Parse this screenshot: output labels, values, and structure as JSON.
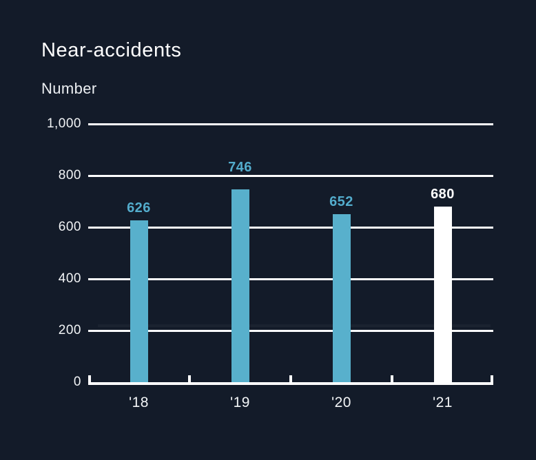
{
  "chart_data": {
    "type": "bar",
    "title": "Near-accidents",
    "ylabel": "Number",
    "xlabel": "",
    "categories": [
      "'18",
      "'19",
      "'20",
      "'21"
    ],
    "values": [
      626,
      746,
      652,
      680
    ],
    "ylim": [
      0,
      1000
    ],
    "yticks": [
      {
        "value": 0,
        "label": "0"
      },
      {
        "value": 200,
        "label": "200"
      },
      {
        "value": 400,
        "label": "400"
      },
      {
        "value": 600,
        "label": "600"
      },
      {
        "value": 800,
        "label": "800"
      },
      {
        "value": 1000,
        "label": "1,000"
      }
    ],
    "grid": true,
    "legend": false,
    "bar_colors": [
      "#58B0CC",
      "#58B0CC",
      "#58B0CC",
      "#FFFFFF"
    ],
    "value_label_colors": [
      "#53ACCC",
      "#53ACCC",
      "#53ACCC",
      "#FFFFFF"
    ],
    "reference_line": {
      "value": 220,
      "color": "#1B2330"
    },
    "colors": {
      "background": "#131B29",
      "bar": "#58B0CC",
      "bar_highlight": "#FFFFFF",
      "axis": "#FFFFFF",
      "text": "#F2F4F6"
    }
  }
}
